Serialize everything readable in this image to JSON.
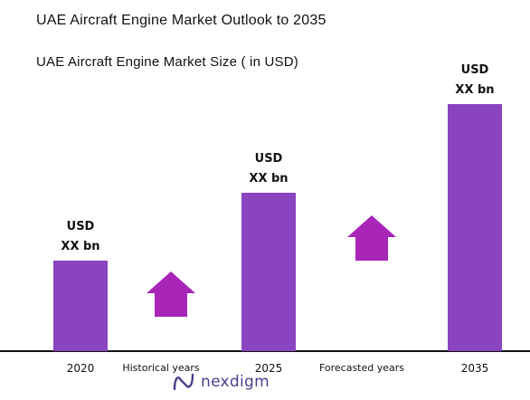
{
  "header": {
    "title": "UAE Aircraft Engine Market Outlook to 2035",
    "subtitle": "UAE Aircraft Engine Market Size ( in USD)"
  },
  "chart_data": {
    "type": "bar",
    "categories": [
      "2020",
      "2025",
      "2035"
    ],
    "values": [
      100,
      175,
      273
    ],
    "value_labels": [
      [
        "USD",
        "XX bn"
      ],
      [
        "USD",
        "XX bn"
      ],
      [
        "USD",
        "XX bn"
      ]
    ],
    "periods": [
      "Historical years",
      "Forecasted years"
    ],
    "ylim": [
      0,
      280
    ],
    "grid": false,
    "bar_color": "#8a44bf",
    "arrow_color": "#a825b8"
  },
  "brand": {
    "name": "nexdigm",
    "color": "#4a3f8c"
  }
}
